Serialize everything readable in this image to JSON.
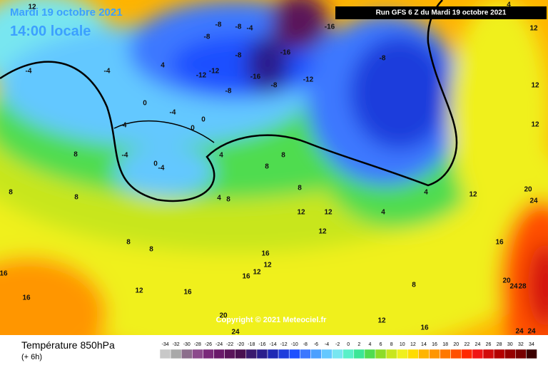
{
  "header": {
    "date": "Mardi 19 octobre 2021",
    "time": "14:00 locale",
    "run": "Run GFS 6 Z du Mardi 19 octobre 2021"
  },
  "copyright": "Copyright © 2021 Meteociel.fr",
  "legend": {
    "title": "Température 850hPa",
    "subtitle": "(+ 6h)",
    "values": [
      -34,
      -32,
      -30,
      -28,
      -26,
      -24,
      -22,
      -20,
      -18,
      -16,
      -14,
      -12,
      -10,
      -8,
      -6,
      -4,
      -2,
      0,
      2,
      4,
      6,
      8,
      10,
      12,
      14,
      16,
      18,
      20,
      22,
      24,
      26,
      28,
      30,
      32,
      34
    ],
    "colors": [
      "#c8c8c8",
      "#a8a8a8",
      "#8c6e8c",
      "#8c4a8c",
      "#7a2a7a",
      "#6a1a6a",
      "#5a145a",
      "#4a1050",
      "#3a1a6e",
      "#2a1e8c",
      "#1e28b4",
      "#1e3cdc",
      "#1e50ff",
      "#3c78ff",
      "#4ca0ff",
      "#64c8ff",
      "#78e6f0",
      "#5af0c8",
      "#3ce696",
      "#50dc50",
      "#8cdc28",
      "#c8e61e",
      "#f0f01e",
      "#ffdc00",
      "#ffb400",
      "#ff9600",
      "#ff7800",
      "#ff5000",
      "#ff2800",
      "#f01414",
      "#d20a0a",
      "#b40000",
      "#960000",
      "#780000",
      "#3c0000"
    ]
  },
  "map_labels": [
    "12",
    "-4",
    "-4",
    "4",
    "-8",
    "-8",
    "-4",
    "-8",
    "-8",
    "-12",
    "-12",
    "-16",
    "-16",
    "-8",
    "-12",
    "-16",
    "-8",
    "-8",
    "-4",
    "0",
    "0",
    "0",
    "-4",
    "-4",
    "0",
    "-4",
    "4",
    "4",
    "8",
    "8",
    "8",
    "8",
    "8",
    "12",
    "12",
    "12",
    "4",
    "4",
    "12",
    "20",
    "24",
    "16",
    "20",
    "24",
    "28",
    "8",
    "8",
    "12",
    "16",
    "16",
    "16",
    "16",
    "12",
    "16",
    "12",
    "8",
    "12",
    "16",
    "20",
    "24",
    "24",
    "24",
    "12",
    "12",
    "12",
    "4",
    "8",
    "8"
  ]
}
